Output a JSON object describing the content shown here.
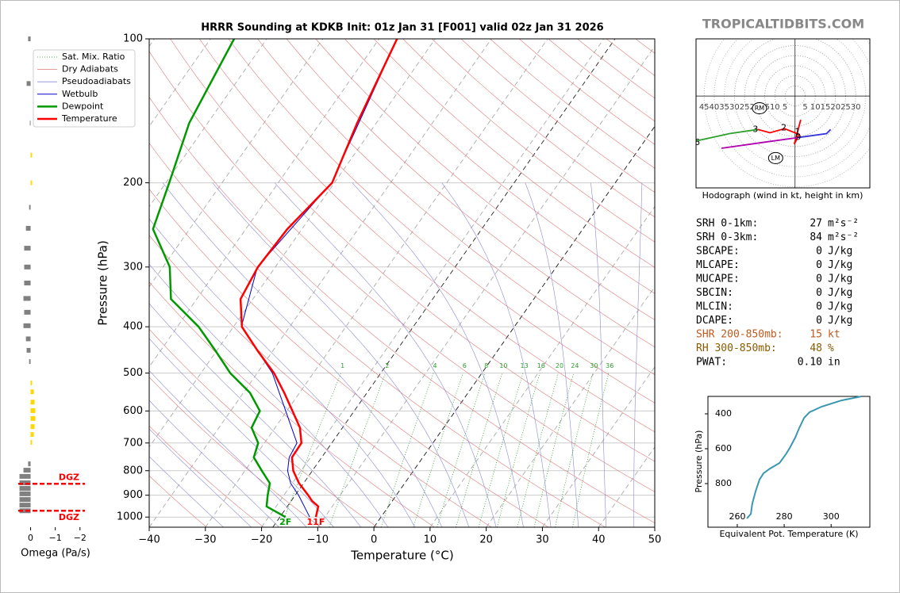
{
  "site": "TROPICALTIDBITS.COM",
  "chart_data": [
    {
      "type": "skewt",
      "title": "HRRR Sounding at KDKB Init: 01z Jan 31 [F001] valid 02z Jan 31 2026",
      "xlabel": "Temperature (°C)",
      "ylabel": "Pressure (hPa)",
      "xlim": [
        -40,
        50
      ],
      "xticks": [
        {
          "value": -40,
          "label": "−40"
        },
        {
          "value": -30,
          "label": "−30"
        },
        {
          "value": -20,
          "label": "−20"
        },
        {
          "value": -10,
          "label": "−10"
        },
        0,
        10,
        20,
        30,
        40,
        50
      ],
      "ylim": [
        1050,
        100
      ],
      "yscale": "log",
      "yticks": [
        100,
        200,
        300,
        400,
        500,
        600,
        700,
        800,
        900,
        1000
      ],
      "grid": true,
      "legend": "upper left",
      "reference_lines": [
        {
          "name": "Sat. Mix. Ratio",
          "color": "#2ca02c"
        },
        {
          "name": "Dry Adiabats",
          "color": "#e07a7a"
        },
        {
          "name": "Pseudoadiabats",
          "color": "#8a8ad6"
        }
      ],
      "mixing_ratio_labels": [
        1,
        2,
        4,
        6,
        8,
        10,
        13,
        16,
        20,
        24,
        30,
        36
      ],
      "series": [
        {
          "name": "Wetbulb",
          "color": "#0000cc",
          "pressure": [
            1000,
            900,
            850,
            800,
            750,
            700,
            600,
            500,
            400,
            300,
            200,
            100
          ],
          "values": [
            -12.7,
            -17.4,
            -20.3,
            -22.4,
            -23.8,
            -24.2,
            -30.2,
            -37.3,
            -48.6,
            -53.2,
            -50.5,
            -56.8
          ]
        },
        {
          "name": "Dewpoint",
          "color": "#009900",
          "surface_label": "2F",
          "pressure": [
            1000,
            950,
            900,
            850,
            800,
            750,
            700,
            650,
            600,
            550,
            500,
            450,
            400,
            350,
            300,
            250,
            200,
            150,
            100
          ],
          "values": [
            -17.0,
            -21.7,
            -22.9,
            -24.0,
            -27.0,
            -30.1,
            -31.1,
            -34.2,
            -34.8,
            -38.8,
            -44.8,
            -50.1,
            -56.2,
            -64.6,
            -68.8,
            -76.5,
            -79.4,
            -83.3,
            -85.8
          ]
        },
        {
          "name": "Temperature",
          "color": "#ff0000",
          "surface_label": "11F",
          "pressure": [
            1000,
            950,
            925,
            900,
            850,
            800,
            750,
            700,
            650,
            600,
            550,
            500,
            450,
            400,
            350,
            300,
            250,
            200,
            150,
            100
          ],
          "values": [
            -11.6,
            -12.5,
            -14.3,
            -15.7,
            -18.8,
            -21.4,
            -23.3,
            -23.4,
            -25.6,
            -29.0,
            -32.7,
            -37.0,
            -42.6,
            -48.5,
            -52.2,
            -53.1,
            -52.6,
            -50.4,
            -53.4,
            -56.8
          ]
        }
      ]
    },
    {
      "type": "hodograph",
      "xlabel": "Hodograph (wind in kt, height in km)",
      "xlim": [
        -49,
        37
      ],
      "ylim": [
        -45,
        28
      ],
      "xticks": [
        {
          "value": -45,
          "label": "45"
        },
        {
          "value": -40,
          "label": "40"
        },
        {
          "value": -35,
          "label": "35"
        },
        {
          "value": -30,
          "label": "30"
        },
        {
          "value": -25,
          "label": "25"
        },
        {
          "value": -20,
          "label": "20"
        },
        {
          "value": -15,
          "label": "15"
        },
        {
          "value": -10,
          "label": "10"
        },
        {
          "value": -5,
          "label": "5"
        },
        5,
        10,
        15,
        20,
        25,
        30
      ],
      "series": [
        {
          "color": "#ff0000",
          "u": [
            2.8,
            -0.4,
            2.0,
            -5.2,
            -12.4,
            -18.4
          ],
          "v": [
            -11.6,
            -23.6,
            -18.8,
            -16.0,
            -18.0,
            -16.4
          ]
        },
        {
          "color": "#2ca02c",
          "u": [
            -18.4,
            -32.4,
            -49.0
          ],
          "v": [
            -16.4,
            -18.4,
            -22.0
          ]
        },
        {
          "color": "#b000b0",
          "u": [
            1.2,
            -16.4,
            -36.4
          ],
          "v": [
            -20.4,
            -22.8,
            -25.6
          ]
        },
        {
          "color": "#3333dd",
          "u": [
            1.2,
            15.6,
            17.6
          ],
          "v": [
            -20.4,
            -18.4,
            -16.4
          ]
        }
      ],
      "points": [
        {
          "label": "RM",
          "u": -17.6,
          "v": -6.0
        },
        {
          "label": "LM",
          "u": -9.6,
          "v": -30.4
        },
        {
          "label": "1",
          "u": 1.2,
          "v": -17.6
        },
        {
          "label": "2",
          "u": -5.6,
          "v": -15.6
        },
        {
          "label": "3",
          "u": -19.6,
          "v": -16.4
        },
        {
          "label": "6",
          "u": -48.4,
          "v": -22.8
        },
        {
          "label": "9",
          "u": 1.6,
          "v": -20.4
        }
      ]
    },
    {
      "type": "barh",
      "xlabel": "Omega (Pa/s)",
      "xlim": [
        0.5,
        -2.2
      ],
      "xticks": [
        0,
        {
          "value": -1,
          "label": "−1"
        },
        {
          "value": -2,
          "label": "−2"
        }
      ],
      "ylim": [
        1050,
        100
      ],
      "pressure": [
        100,
        124,
        150,
        175,
        200,
        225,
        249,
        274,
        300,
        324,
        349,
        373,
        398,
        424,
        448,
        473,
        524,
        547,
        575,
        599,
        622,
        647,
        672,
        698,
        774,
        798,
        822,
        848,
        871,
        894,
        919,
        944,
        970
      ],
      "values": [
        0.1,
        0.16,
        0.03,
        -0.06,
        -0.06,
        0.06,
        0.19,
        0.26,
        0.26,
        0.26,
        0.29,
        0.26,
        0.29,
        0.19,
        0.16,
        0.06,
        -0.06,
        -0.13,
        -0.16,
        -0.19,
        -0.19,
        -0.16,
        -0.13,
        -0.06,
        0.1,
        0.29,
        0.45,
        0.45,
        0.45,
        0.45,
        0.45,
        0.45,
        0.45
      ],
      "colors": {
        "up": "#ffd700",
        "down": "#808080"
      },
      "dgz": {
        "label": "DGZ",
        "color": "#ff0000",
        "pressure": [
          852,
          970
        ]
      }
    },
    {
      "type": "line",
      "xlabel": "Equivalent Pot. Temperature (K)",
      "ylabel": "Pressure (hPa)",
      "xlim": [
        247.5,
        316.5
      ],
      "xticks": [
        260,
        280,
        300
      ],
      "ylim": [
        1050,
        300
      ],
      "yticks": [
        400,
        600,
        800
      ],
      "series": [
        {
          "color": "#3a97b0",
          "pressure": [
            1000,
            973,
            914,
            845,
            777,
            741,
            714,
            682,
            632,
            595,
            536,
            482,
            423,
            391,
            359,
            323,
            300
          ],
          "values": [
            264.1,
            265.8,
            266.4,
            267.8,
            269.5,
            271.2,
            273.9,
            278.0,
            280.7,
            282.4,
            284.7,
            286.4,
            288.5,
            290.8,
            295.9,
            304.4,
            312.9
          ]
        }
      ]
    }
  ],
  "indices": {
    "rows": [
      {
        "label": "SRH 0-1km:",
        "value": 27,
        "unit": "m²s⁻²",
        "color": "#000000"
      },
      {
        "label": "SRH 0-3km:",
        "value": 84,
        "unit": "m²s⁻²",
        "color": "#000000"
      },
      {
        "label": "SBCAPE:",
        "value": 0,
        "unit": "J/kg",
        "color": "#000000"
      },
      {
        "label": "MLCAPE:",
        "value": 0,
        "unit": "J/kg",
        "color": "#000000"
      },
      {
        "label": "MUCAPE:",
        "value": 0,
        "unit": "J/kg",
        "color": "#000000"
      },
      {
        "label": "SBCIN:",
        "value": 0,
        "unit": "J/kg",
        "color": "#000000"
      },
      {
        "label": "MLCIN:",
        "value": 0,
        "unit": "J/kg",
        "color": "#000000"
      },
      {
        "label": "DCAPE:",
        "value": 0,
        "unit": "J/kg",
        "color": "#000000"
      },
      {
        "label": "SHR 200-850mb:",
        "value": 15,
        "unit": "kt",
        "color": "#c05a1e"
      },
      {
        "label": "RH 300-850mb:",
        "value": 48,
        "unit": "%",
        "color": "#8b5a00"
      },
      {
        "label": "PWAT:",
        "value": "0.10",
        "unit": "in",
        "color": "#000000"
      }
    ]
  }
}
